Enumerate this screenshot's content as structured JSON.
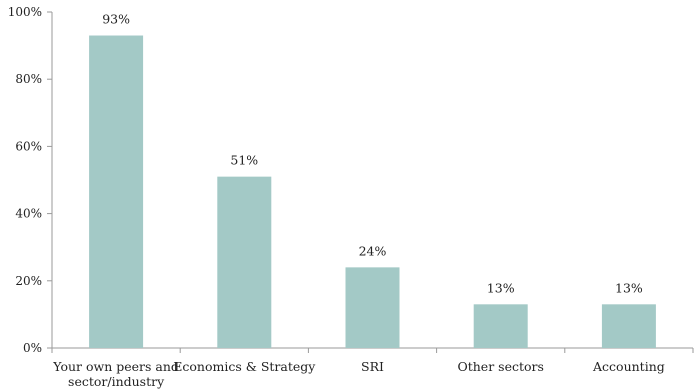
{
  "chart_data": {
    "type": "bar",
    "categories": [
      [
        "Your own peers and",
        "sector/industry"
      ],
      [
        "Economics & Strategy"
      ],
      [
        "SRI"
      ],
      [
        "Other sectors"
      ],
      [
        "Accounting"
      ]
    ],
    "values": [
      93,
      51,
      24,
      13,
      13
    ],
    "value_labels": [
      "93%",
      "51%",
      "24%",
      "13%",
      "13%"
    ],
    "ylim": [
      0,
      100
    ],
    "yticks": [
      0,
      20,
      40,
      60,
      80,
      100
    ],
    "ytick_labels": [
      "0%",
      "20%",
      "40%",
      "60%",
      "80%",
      "100%"
    ],
    "grid": false,
    "bar_color": "#a3c9c6",
    "axis_color": "#9a9a9a"
  }
}
